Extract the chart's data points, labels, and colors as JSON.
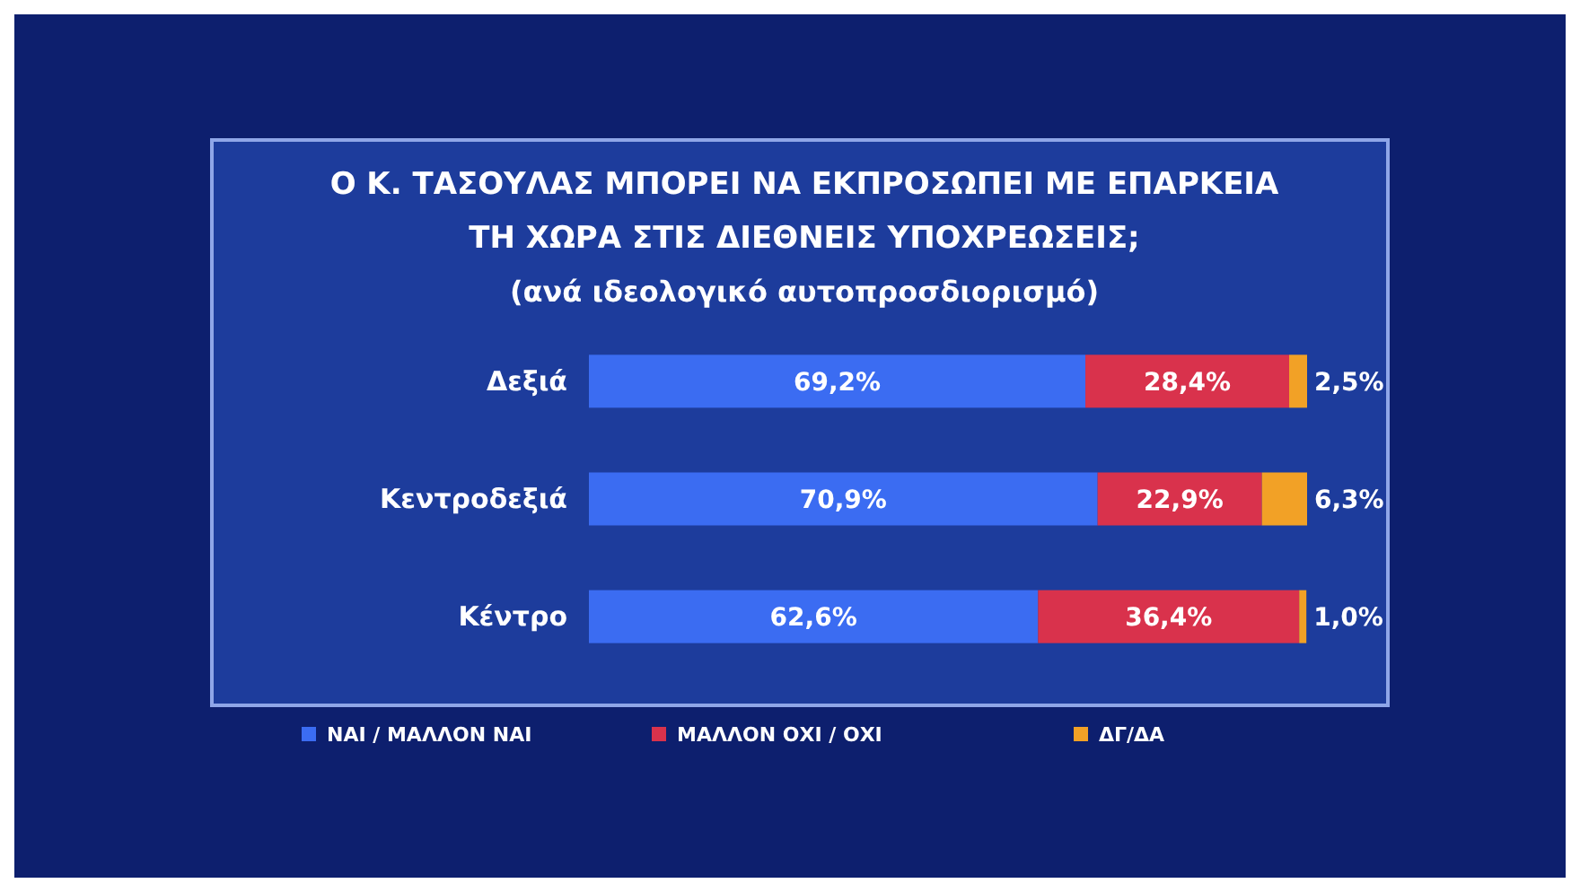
{
  "chart_data": {
    "type": "bar",
    "orientation": "horizontal",
    "stacked": true,
    "title": "Ο Κ. ΤΑΣΟΥΛΑΣ ΜΠΟΡΕΙ ΝΑ ΕΚΠΡΟΣΩΠΕΙ ΜΕ ΕΠΑΡΚΕΙΑ ΤΗ ΧΩΡΑ ΣΤΙΣ ΔΙΕΘΝΕΙΣ ΥΠΟΧΡΕΩΣΕΙΣ;",
    "subtitle": "(ανά ιδεολογικό αυτοπροσδιορισμό)",
    "categories": [
      "Δεξιά",
      "Κεντροδεξιά",
      "Κέντρο"
    ],
    "legend": "bottom",
    "tick_labels": "y",
    "series": [
      {
        "name": "ΝΑΙ / ΜΑΛΛΟΝ ΝΑΙ",
        "color": "#3b6cf2",
        "values": [
          69.2,
          70.9,
          62.6
        ],
        "value_labels": [
          "69,2%",
          "70,9%",
          "62,6%"
        ]
      },
      {
        "name": "ΜΑΛΛΟΝ ΟΧΙ / ΟΧΙ",
        "color": "#d9324c",
        "values": [
          28.4,
          22.9,
          36.4
        ],
        "value_labels": [
          "28,4%",
          "22,9%",
          "36,4%"
        ]
      },
      {
        "name": "ΔΓ/ΔΑ",
        "color": "#f2a126",
        "values": [
          2.5,
          6.3,
          1.0
        ],
        "value_labels": [
          "2,5%",
          "6,3%",
          "1,0%"
        ]
      }
    ]
  }
}
